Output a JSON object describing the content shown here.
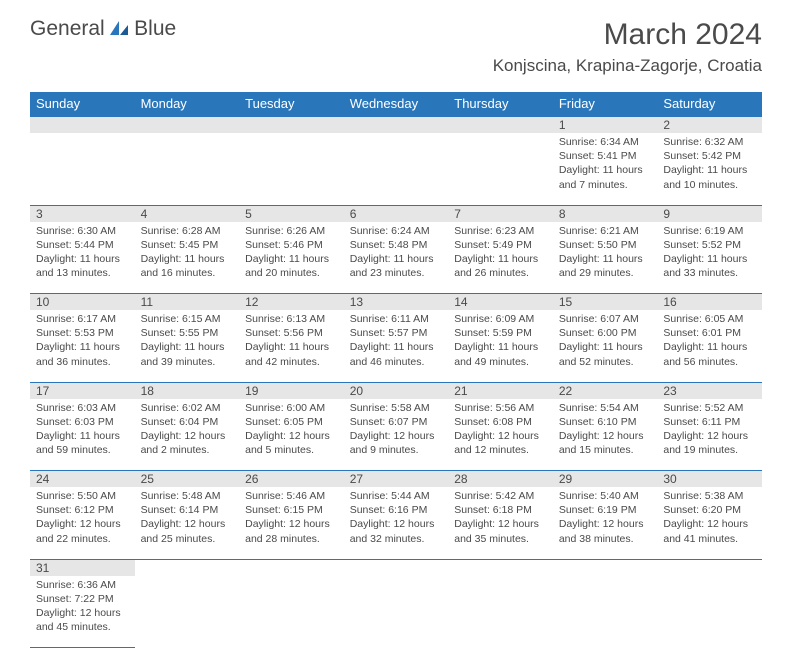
{
  "logo": {
    "text1": "General",
    "text2": "Blue"
  },
  "title": "March 2024",
  "location": "Konjscina, Krapina-Zagorje, Croatia",
  "colors": {
    "header_bg": "#2976bb",
    "daynum_bg": "#e6e6e6",
    "text": "#4a4a4a"
  },
  "weekdays": [
    "Sunday",
    "Monday",
    "Tuesday",
    "Wednesday",
    "Thursday",
    "Friday",
    "Saturday"
  ],
  "weeks": [
    [
      null,
      null,
      null,
      null,
      null,
      {
        "n": "1",
        "sr": "Sunrise: 6:34 AM",
        "ss": "Sunset: 5:41 PM",
        "d1": "Daylight: 11 hours",
        "d2": "and 7 minutes."
      },
      {
        "n": "2",
        "sr": "Sunrise: 6:32 AM",
        "ss": "Sunset: 5:42 PM",
        "d1": "Daylight: 11 hours",
        "d2": "and 10 minutes."
      }
    ],
    [
      {
        "n": "3",
        "sr": "Sunrise: 6:30 AM",
        "ss": "Sunset: 5:44 PM",
        "d1": "Daylight: 11 hours",
        "d2": "and 13 minutes."
      },
      {
        "n": "4",
        "sr": "Sunrise: 6:28 AM",
        "ss": "Sunset: 5:45 PM",
        "d1": "Daylight: 11 hours",
        "d2": "and 16 minutes."
      },
      {
        "n": "5",
        "sr": "Sunrise: 6:26 AM",
        "ss": "Sunset: 5:46 PM",
        "d1": "Daylight: 11 hours",
        "d2": "and 20 minutes."
      },
      {
        "n": "6",
        "sr": "Sunrise: 6:24 AM",
        "ss": "Sunset: 5:48 PM",
        "d1": "Daylight: 11 hours",
        "d2": "and 23 minutes."
      },
      {
        "n": "7",
        "sr": "Sunrise: 6:23 AM",
        "ss": "Sunset: 5:49 PM",
        "d1": "Daylight: 11 hours",
        "d2": "and 26 minutes."
      },
      {
        "n": "8",
        "sr": "Sunrise: 6:21 AM",
        "ss": "Sunset: 5:50 PM",
        "d1": "Daylight: 11 hours",
        "d2": "and 29 minutes."
      },
      {
        "n": "9",
        "sr": "Sunrise: 6:19 AM",
        "ss": "Sunset: 5:52 PM",
        "d1": "Daylight: 11 hours",
        "d2": "and 33 minutes."
      }
    ],
    [
      {
        "n": "10",
        "sr": "Sunrise: 6:17 AM",
        "ss": "Sunset: 5:53 PM",
        "d1": "Daylight: 11 hours",
        "d2": "and 36 minutes."
      },
      {
        "n": "11",
        "sr": "Sunrise: 6:15 AM",
        "ss": "Sunset: 5:55 PM",
        "d1": "Daylight: 11 hours",
        "d2": "and 39 minutes."
      },
      {
        "n": "12",
        "sr": "Sunrise: 6:13 AM",
        "ss": "Sunset: 5:56 PM",
        "d1": "Daylight: 11 hours",
        "d2": "and 42 minutes."
      },
      {
        "n": "13",
        "sr": "Sunrise: 6:11 AM",
        "ss": "Sunset: 5:57 PM",
        "d1": "Daylight: 11 hours",
        "d2": "and 46 minutes."
      },
      {
        "n": "14",
        "sr": "Sunrise: 6:09 AM",
        "ss": "Sunset: 5:59 PM",
        "d1": "Daylight: 11 hours",
        "d2": "and 49 minutes."
      },
      {
        "n": "15",
        "sr": "Sunrise: 6:07 AM",
        "ss": "Sunset: 6:00 PM",
        "d1": "Daylight: 11 hours",
        "d2": "and 52 minutes."
      },
      {
        "n": "16",
        "sr": "Sunrise: 6:05 AM",
        "ss": "Sunset: 6:01 PM",
        "d1": "Daylight: 11 hours",
        "d2": "and 56 minutes."
      }
    ],
    [
      {
        "n": "17",
        "sr": "Sunrise: 6:03 AM",
        "ss": "Sunset: 6:03 PM",
        "d1": "Daylight: 11 hours",
        "d2": "and 59 minutes."
      },
      {
        "n": "18",
        "sr": "Sunrise: 6:02 AM",
        "ss": "Sunset: 6:04 PM",
        "d1": "Daylight: 12 hours",
        "d2": "and 2 minutes."
      },
      {
        "n": "19",
        "sr": "Sunrise: 6:00 AM",
        "ss": "Sunset: 6:05 PM",
        "d1": "Daylight: 12 hours",
        "d2": "and 5 minutes."
      },
      {
        "n": "20",
        "sr": "Sunrise: 5:58 AM",
        "ss": "Sunset: 6:07 PM",
        "d1": "Daylight: 12 hours",
        "d2": "and 9 minutes."
      },
      {
        "n": "21",
        "sr": "Sunrise: 5:56 AM",
        "ss": "Sunset: 6:08 PM",
        "d1": "Daylight: 12 hours",
        "d2": "and 12 minutes."
      },
      {
        "n": "22",
        "sr": "Sunrise: 5:54 AM",
        "ss": "Sunset: 6:10 PM",
        "d1": "Daylight: 12 hours",
        "d2": "and 15 minutes."
      },
      {
        "n": "23",
        "sr": "Sunrise: 5:52 AM",
        "ss": "Sunset: 6:11 PM",
        "d1": "Daylight: 12 hours",
        "d2": "and 19 minutes."
      }
    ],
    [
      {
        "n": "24",
        "sr": "Sunrise: 5:50 AM",
        "ss": "Sunset: 6:12 PM",
        "d1": "Daylight: 12 hours",
        "d2": "and 22 minutes."
      },
      {
        "n": "25",
        "sr": "Sunrise: 5:48 AM",
        "ss": "Sunset: 6:14 PM",
        "d1": "Daylight: 12 hours",
        "d2": "and 25 minutes."
      },
      {
        "n": "26",
        "sr": "Sunrise: 5:46 AM",
        "ss": "Sunset: 6:15 PM",
        "d1": "Daylight: 12 hours",
        "d2": "and 28 minutes."
      },
      {
        "n": "27",
        "sr": "Sunrise: 5:44 AM",
        "ss": "Sunset: 6:16 PM",
        "d1": "Daylight: 12 hours",
        "d2": "and 32 minutes."
      },
      {
        "n": "28",
        "sr": "Sunrise: 5:42 AM",
        "ss": "Sunset: 6:18 PM",
        "d1": "Daylight: 12 hours",
        "d2": "and 35 minutes."
      },
      {
        "n": "29",
        "sr": "Sunrise: 5:40 AM",
        "ss": "Sunset: 6:19 PM",
        "d1": "Daylight: 12 hours",
        "d2": "and 38 minutes."
      },
      {
        "n": "30",
        "sr": "Sunrise: 5:38 AM",
        "ss": "Sunset: 6:20 PM",
        "d1": "Daylight: 12 hours",
        "d2": "and 41 minutes."
      }
    ],
    [
      {
        "n": "31",
        "sr": "Sunrise: 6:36 AM",
        "ss": "Sunset: 7:22 PM",
        "d1": "Daylight: 12 hours",
        "d2": "and 45 minutes."
      },
      null,
      null,
      null,
      null,
      null,
      null
    ]
  ]
}
